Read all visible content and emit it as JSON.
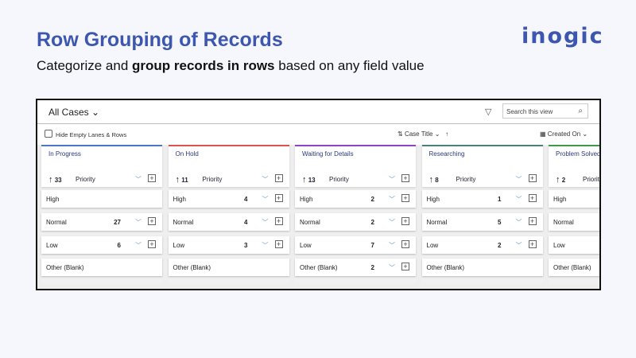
{
  "title": "Row Grouping of Records",
  "subtitle": {
    "pre": "Categorize and ",
    "bold": "group records in rows",
    "post": " based on any field value"
  },
  "logo": "inogic",
  "view": {
    "name": "All Cases ⌄",
    "search_placeholder": "Search this view",
    "hide_empty": "Hide Empty Lanes & Rows",
    "sort_field": "Case Title ⌄",
    "sort_dir": "↑",
    "sort_icon": "⇅",
    "date_field": "Created On ⌄"
  },
  "colors": {
    "accent": "#3d57b0"
  },
  "lanes": [
    {
      "name": "In Progress",
      "count": "33",
      "field": "Priority",
      "color": "#4a78c4",
      "rows": [
        {
          "label": "High",
          "count": ""
        },
        {
          "label": "Normal",
          "count": "27"
        },
        {
          "label": "Low",
          "count": "6"
        },
        {
          "label": "Other (Blank)",
          "count": ""
        }
      ]
    },
    {
      "name": "On Hold",
      "count": "11",
      "field": "Priority",
      "color": "#d9534f",
      "rows": [
        {
          "label": "High",
          "count": "4"
        },
        {
          "label": "Normal",
          "count": "4"
        },
        {
          "label": "Low",
          "count": "3"
        },
        {
          "label": "Other (Blank)",
          "count": ""
        }
      ]
    },
    {
      "name": "Waiting for Details",
      "count": "13",
      "field": "Priority",
      "color": "#8e44c4",
      "rows": [
        {
          "label": "High",
          "count": "2"
        },
        {
          "label": "Normal",
          "count": "2"
        },
        {
          "label": "Low",
          "count": "7"
        },
        {
          "label": "Other (Blank)",
          "count": "2"
        }
      ]
    },
    {
      "name": "Researching",
      "count": "8",
      "field": "Priority",
      "color": "#4a7f7a",
      "rows": [
        {
          "label": "High",
          "count": "1"
        },
        {
          "label": "Normal",
          "count": "5"
        },
        {
          "label": "Low",
          "count": "2"
        },
        {
          "label": "Other (Blank)",
          "count": ""
        }
      ]
    },
    {
      "name": "Problem Solved",
      "count": "2",
      "field": "Priority",
      "color": "#3e9a4a",
      "rows": [
        {
          "label": "High",
          "count": ""
        },
        {
          "label": "Normal",
          "count": ""
        },
        {
          "label": "Low",
          "count": ""
        },
        {
          "label": "Other (Blank)",
          "count": ""
        }
      ]
    }
  ]
}
